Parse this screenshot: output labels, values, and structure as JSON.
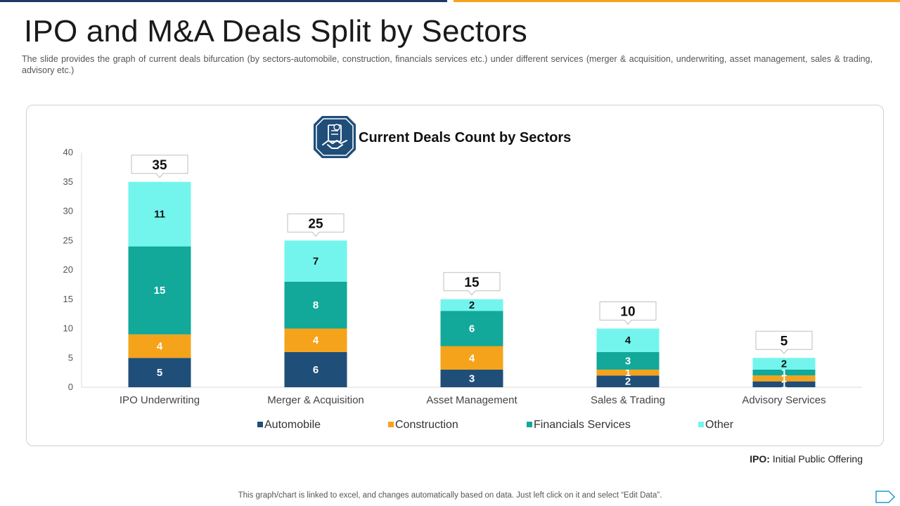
{
  "slide": {
    "title": "IPO and M&A Deals Split by Sectors",
    "subtitle": "The slide provides the graph of current deals bifurcation (by sectors-automobile, construction, financials services etc.) under different services (merger & acquisition, underwriting, asset management, sales & trading, advisory etc.)",
    "footnote_term": "IPO:",
    "footnote_text": " Initial Public Offering",
    "bottom_note": "This graph/chart is linked to excel, and changes automatically based on data. Just left click on it and select “Edit Data”.",
    "accent_colors": {
      "navy": "#1f3864",
      "orange": "#f5a31a"
    },
    "icon": "handshake-document-icon",
    "nav_icon": "next-arrow-icon"
  },
  "chart_data": {
    "type": "bar",
    "stacked": true,
    "title": "Current Deals Count by Sectors",
    "xlabel": "",
    "ylabel": "",
    "ylim": [
      0,
      40
    ],
    "yticks": [
      0,
      5,
      10,
      15,
      20,
      25,
      30,
      35,
      40
    ],
    "grid": false,
    "legend_position": "bottom",
    "categories": [
      "IPO Underwriting",
      "Merger & Acquisition",
      "Asset Management",
      "Sales & Trading",
      "Advisory Services"
    ],
    "series": [
      {
        "name": "Automobile",
        "color": "#1f4e79",
        "values": [
          5,
          6,
          3,
          2,
          1
        ]
      },
      {
        "name": "Construction",
        "color": "#f5a31a",
        "values": [
          4,
          4,
          4,
          1,
          1
        ]
      },
      {
        "name": "Financials Services",
        "color": "#12a89a",
        "values": [
          15,
          8,
          6,
          3,
          1
        ]
      },
      {
        "name": "Other",
        "color": "#73f5ee",
        "values": [
          11,
          7,
          2,
          4,
          2
        ]
      }
    ],
    "totals": [
      35,
      25,
      15,
      10,
      5
    ]
  }
}
